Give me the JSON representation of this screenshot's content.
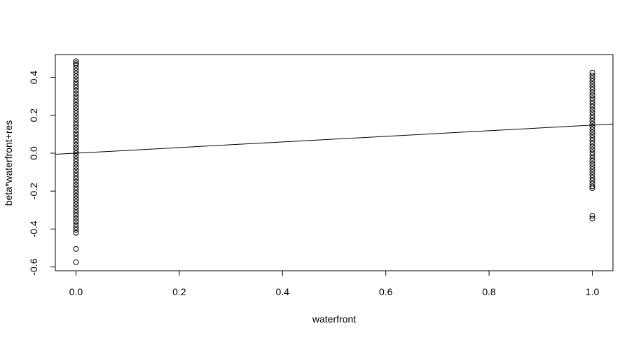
{
  "chart_data": {
    "type": "scatter",
    "title": "",
    "xlabel": "waterfront",
    "ylabel": "beta*waterfront+res",
    "xlim": [
      -0.04,
      1.04
    ],
    "ylim": [
      -0.62,
      0.52
    ],
    "xticks": [
      0.0,
      0.2,
      0.4,
      0.6,
      0.8,
      1.0
    ],
    "xtick_labels": [
      "0.0",
      "0.2",
      "0.4",
      "0.6",
      "0.8",
      "1.0"
    ],
    "yticks": [
      -0.6,
      -0.4,
      -0.2,
      0.0,
      0.2,
      0.4
    ],
    "ytick_labels": [
      "-0.6",
      "-0.4",
      "-0.2",
      "0.0",
      "0.2",
      "0.4"
    ],
    "grid": false,
    "fit_line": {
      "intercept": 0.0,
      "slope": 0.148
    },
    "series": [
      {
        "x": 0,
        "y": [
          0.485,
          0.475,
          0.465,
          0.45,
          0.435,
          0.42,
          0.405,
          0.39,
          0.375,
          0.36,
          0.345,
          0.33,
          0.315,
          0.3,
          0.285,
          0.27,
          0.255,
          0.24,
          0.225,
          0.21,
          0.195,
          0.18,
          0.165,
          0.15,
          0.135,
          0.12,
          0.105,
          0.09,
          0.075,
          0.06,
          0.045,
          0.03,
          0.015,
          0.0,
          -0.015,
          -0.03,
          -0.045,
          -0.06,
          -0.075,
          -0.09,
          -0.105,
          -0.12,
          -0.135,
          -0.15,
          -0.165,
          -0.18,
          -0.195,
          -0.21,
          -0.225,
          -0.24,
          -0.255,
          -0.27,
          -0.285,
          -0.3,
          -0.315,
          -0.33,
          -0.345,
          -0.36,
          -0.375,
          -0.39,
          -0.405,
          -0.42,
          -0.505,
          -0.575
        ]
      },
      {
        "x": 1,
        "y": [
          0.425,
          0.41,
          0.395,
          0.38,
          0.365,
          0.35,
          0.335,
          0.32,
          0.305,
          0.29,
          0.275,
          0.26,
          0.245,
          0.23,
          0.215,
          0.2,
          0.185,
          0.17,
          0.155,
          0.14,
          0.125,
          0.11,
          0.095,
          0.08,
          0.065,
          0.05,
          0.035,
          0.02,
          0.005,
          -0.01,
          -0.025,
          -0.04,
          -0.055,
          -0.07,
          -0.085,
          -0.1,
          -0.115,
          -0.13,
          -0.145,
          -0.16,
          -0.175,
          -0.185,
          -0.33,
          -0.345
        ]
      }
    ]
  }
}
